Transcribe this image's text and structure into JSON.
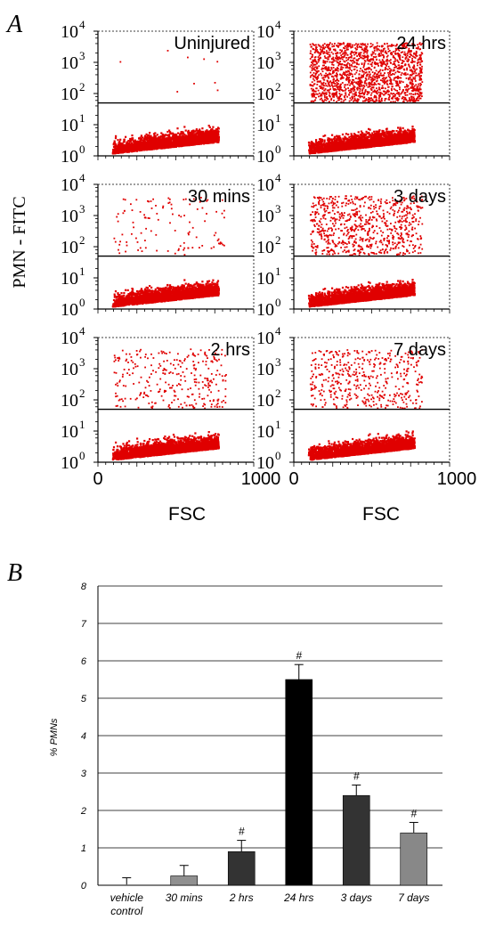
{
  "panel_labels": {
    "a": "A",
    "b": "B"
  },
  "colors": {
    "dots": "#e00000",
    "axis": "#000000",
    "grid": "#000000"
  },
  "chart_data": [
    {
      "type": "scatter",
      "ylabel": "PMN - FITC",
      "xlabel": "FSC",
      "x_ticks": [
        "0",
        "1000"
      ],
      "y_ticks": [
        {
          "base": "10",
          "exp": "4"
        },
        {
          "base": "10",
          "exp": "3"
        },
        {
          "base": "10",
          "exp": "2"
        },
        {
          "base": "10",
          "exp": "1"
        },
        {
          "base": "10",
          "exp": "0"
        }
      ],
      "xlim": [
        0,
        1000
      ],
      "ylim_log10": [
        0,
        4
      ],
      "gate_threshold": 50,
      "panels": [
        {
          "label": "Uninjured",
          "positive_fraction": 0.0002
        },
        {
          "label": "24 hrs",
          "positive_fraction": 0.055
        },
        {
          "label": "30 mins",
          "positive_fraction": 0.003
        },
        {
          "label": "3 days",
          "positive_fraction": 0.024
        },
        {
          "label": "2 hrs",
          "positive_fraction": 0.009
        },
        {
          "label": "7 days",
          "positive_fraction": 0.014
        }
      ]
    },
    {
      "type": "bar",
      "ylabel": "% PMNs",
      "categories": [
        "vehicle control",
        "30 mins",
        "2 hrs",
        "24 hrs",
        "3 days",
        "7 days"
      ],
      "values": [
        0.02,
        0.25,
        0.9,
        5.5,
        2.4,
        1.4
      ],
      "errors": [
        0.18,
        0.28,
        0.3,
        0.4,
        0.28,
        0.28
      ],
      "significance": [
        "",
        "",
        "#",
        "#",
        "#",
        "#"
      ],
      "bar_colors": [
        "#888888",
        "#909090",
        "#333333",
        "#000000",
        "#333333",
        "#888888"
      ],
      "ylim": [
        0,
        8
      ],
      "yticks": [
        "0",
        "1",
        "2",
        "3",
        "4",
        "5",
        "6",
        "7",
        "8"
      ],
      "grid": true
    }
  ]
}
